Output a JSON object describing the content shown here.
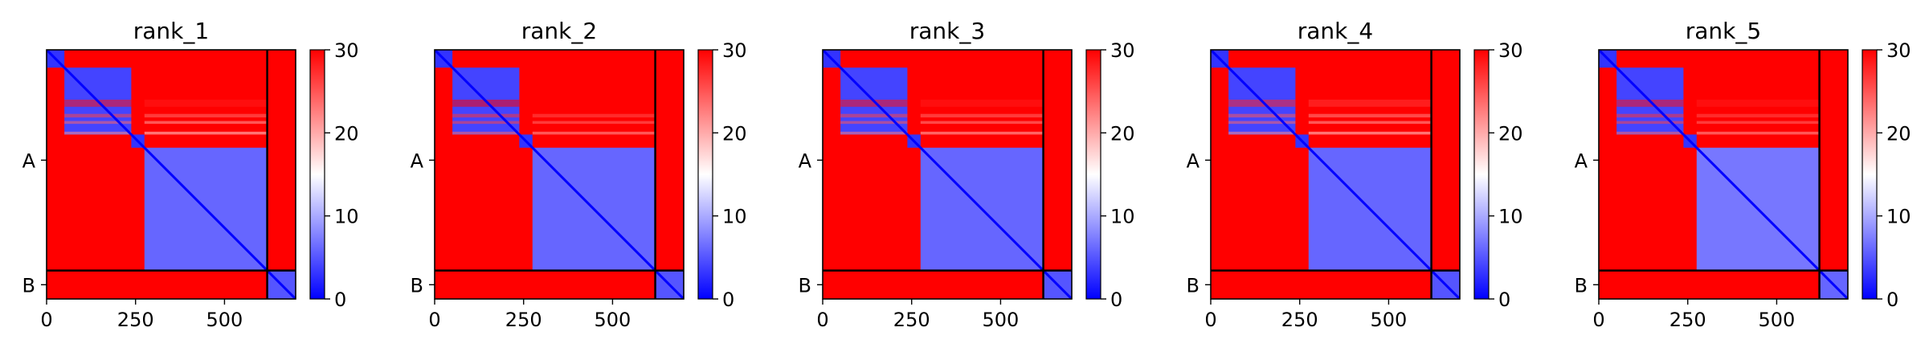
{
  "figure": {
    "colormap": {
      "low": "#0000ff",
      "mid": "#ffffff",
      "high": "#ff0000"
    },
    "colorbar": {
      "min": 0,
      "max": 30,
      "ticks": [
        "0",
        "10",
        "20",
        "30"
      ]
    },
    "chain_boundary_residue": 620
  },
  "chart_data": [
    {
      "type": "heatmap",
      "title": "rank_1",
      "xlabel": "",
      "ylabel": "",
      "x_ticks": [
        "0",
        "250",
        "500"
      ],
      "y_ticks": [
        "A",
        "B"
      ],
      "xlim": [
        0,
        700
      ],
      "chains": [
        {
          "name": "A",
          "length": 620
        },
        {
          "name": "B",
          "length": 80
        }
      ],
      "colorbar": {
        "min": 0,
        "max": 30,
        "ticks": [
          "0",
          "10",
          "20",
          "30"
        ]
      },
      "segments": [
        {
          "range": [
            0,
            50
          ],
          "intra_value": 3,
          "cross_value": 30
        },
        {
          "range": [
            50,
            238
          ],
          "intra_value": 4,
          "cross_value": 30
        },
        {
          "range": [
            238,
            275
          ],
          "intra_value": 3,
          "cross_value": 30
        },
        {
          "range": [
            275,
            620
          ],
          "intra_value": 6,
          "cross_value": 30
        },
        {
          "range": [
            620,
            700
          ],
          "intra_value": 5,
          "cross_value": 25
        }
      ],
      "stripes": [
        {
          "range": [
            140,
            160
          ],
          "value": 29
        },
        {
          "range": [
            180,
            190
          ],
          "value": 26
        },
        {
          "range": [
            200,
            208
          ],
          "value": 24
        },
        {
          "range": [
            230,
            238
          ],
          "value": 22
        }
      ]
    },
    {
      "type": "heatmap",
      "title": "rank_2",
      "xlabel": "",
      "ylabel": "",
      "x_ticks": [
        "0",
        "250",
        "500"
      ],
      "y_ticks": [
        "A",
        "B"
      ],
      "xlim": [
        0,
        700
      ],
      "chains": [
        {
          "name": "A",
          "length": 620
        },
        {
          "name": "B",
          "length": 80
        }
      ],
      "colorbar": {
        "min": 0,
        "max": 30,
        "ticks": [
          "0",
          "10",
          "20",
          "30"
        ]
      },
      "segments": [
        {
          "range": [
            0,
            50
          ],
          "intra_value": 3,
          "cross_value": 30
        },
        {
          "range": [
            50,
            238
          ],
          "intra_value": 4,
          "cross_value": 30
        },
        {
          "range": [
            238,
            275
          ],
          "intra_value": 3,
          "cross_value": 30
        },
        {
          "range": [
            275,
            620
          ],
          "intra_value": 6,
          "cross_value": 30
        },
        {
          "range": [
            620,
            700
          ],
          "intra_value": 5,
          "cross_value": 27
        }
      ],
      "stripes": [
        {
          "range": [
            140,
            160
          ],
          "value": 30
        },
        {
          "range": [
            180,
            190
          ],
          "value": 27
        },
        {
          "range": [
            200,
            208
          ],
          "value": 26
        },
        {
          "range": [
            230,
            238
          ],
          "value": 24
        }
      ]
    },
    {
      "type": "heatmap",
      "title": "rank_3",
      "xlabel": "",
      "ylabel": "",
      "x_ticks": [
        "0",
        "250",
        "500"
      ],
      "y_ticks": [
        "A",
        "B"
      ],
      "xlim": [
        0,
        700
      ],
      "chains": [
        {
          "name": "A",
          "length": 620
        },
        {
          "name": "B",
          "length": 80
        }
      ],
      "colorbar": {
        "min": 0,
        "max": 30,
        "ticks": [
          "0",
          "10",
          "20",
          "30"
        ]
      },
      "segments": [
        {
          "range": [
            0,
            50
          ],
          "intra_value": 3,
          "cross_value": 30
        },
        {
          "range": [
            50,
            238
          ],
          "intra_value": 4,
          "cross_value": 30
        },
        {
          "range": [
            238,
            275
          ],
          "intra_value": 3,
          "cross_value": 30
        },
        {
          "range": [
            275,
            620
          ],
          "intra_value": 6,
          "cross_value": 30
        },
        {
          "range": [
            620,
            700
          ],
          "intra_value": 5,
          "cross_value": 28
        }
      ],
      "stripes": [
        {
          "range": [
            140,
            160
          ],
          "value": 29
        },
        {
          "range": [
            180,
            190
          ],
          "value": 26
        },
        {
          "range": [
            200,
            208
          ],
          "value": 25
        },
        {
          "range": [
            230,
            238
          ],
          "value": 23
        }
      ]
    },
    {
      "type": "heatmap",
      "title": "rank_4",
      "xlabel": "",
      "ylabel": "",
      "x_ticks": [
        "0",
        "250",
        "500"
      ],
      "y_ticks": [
        "A",
        "B"
      ],
      "xlim": [
        0,
        700
      ],
      "chains": [
        {
          "name": "A",
          "length": 620
        },
        {
          "name": "B",
          "length": 80
        }
      ],
      "colorbar": {
        "min": 0,
        "max": 30,
        "ticks": [
          "0",
          "10",
          "20",
          "30"
        ]
      },
      "segments": [
        {
          "range": [
            0,
            50
          ],
          "intra_value": 3,
          "cross_value": 30
        },
        {
          "range": [
            50,
            238
          ],
          "intra_value": 4,
          "cross_value": 30
        },
        {
          "range": [
            238,
            275
          ],
          "intra_value": 3,
          "cross_value": 30
        },
        {
          "range": [
            275,
            620
          ],
          "intra_value": 6,
          "cross_value": 30
        },
        {
          "range": [
            620,
            700
          ],
          "intra_value": 5,
          "cross_value": 29
        }
      ],
      "stripes": [
        {
          "range": [
            140,
            160
          ],
          "value": 28
        },
        {
          "range": [
            180,
            190
          ],
          "value": 25
        },
        {
          "range": [
            200,
            208
          ],
          "value": 24
        },
        {
          "range": [
            230,
            238
          ],
          "value": 22
        }
      ]
    },
    {
      "type": "heatmap",
      "title": "rank_5",
      "xlabel": "",
      "ylabel": "",
      "x_ticks": [
        "0",
        "250",
        "500"
      ],
      "y_ticks": [
        "A",
        "B"
      ],
      "xlim": [
        0,
        700
      ],
      "chains": [
        {
          "name": "A",
          "length": 620
        },
        {
          "name": "B",
          "length": 80
        }
      ],
      "colorbar": {
        "min": 0,
        "max": 30,
        "ticks": [
          "0",
          "10",
          "20",
          "30"
        ]
      },
      "segments": [
        {
          "range": [
            0,
            50
          ],
          "intra_value": 3,
          "cross_value": 30
        },
        {
          "range": [
            50,
            238
          ],
          "intra_value": 4,
          "cross_value": 30
        },
        {
          "range": [
            238,
            275
          ],
          "intra_value": 3,
          "cross_value": 30
        },
        {
          "range": [
            275,
            620
          ],
          "intra_value": 7,
          "cross_value": 30
        },
        {
          "range": [
            620,
            700
          ],
          "intra_value": 6,
          "cross_value": 30
        }
      ],
      "stripes": [
        {
          "range": [
            140,
            160
          ],
          "value": 29
        },
        {
          "range": [
            180,
            190
          ],
          "value": 27
        },
        {
          "range": [
            200,
            208
          ],
          "value": 26
        },
        {
          "range": [
            230,
            238
          ],
          "value": 24
        }
      ]
    }
  ]
}
